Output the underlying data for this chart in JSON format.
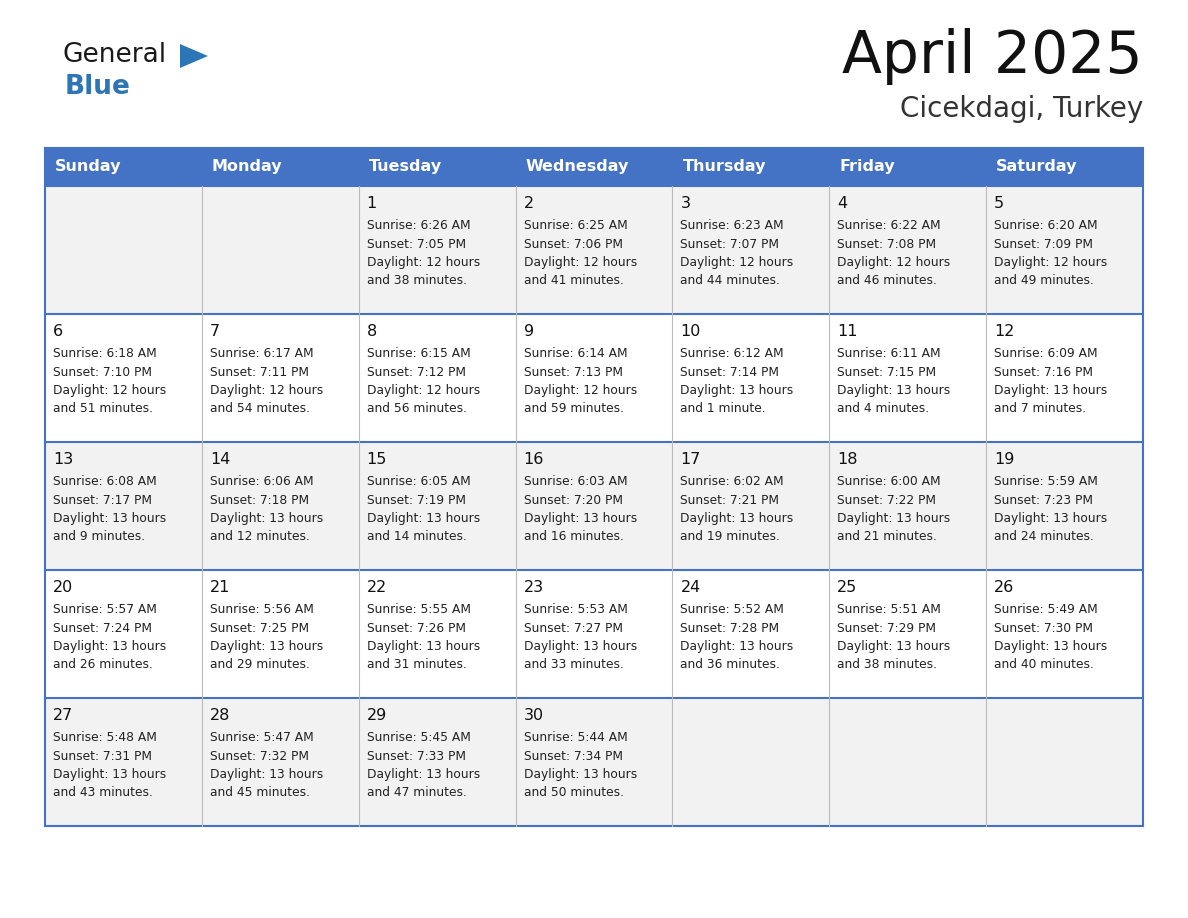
{
  "title": "April 2025",
  "subtitle": "Cicekdagi, Turkey",
  "header_bg": "#4472C4",
  "header_text_color": "#FFFFFF",
  "cell_bg_light": "#F2F2F2",
  "cell_bg_white": "#FFFFFF",
  "border_color": "#4472C4",
  "days_of_week": [
    "Sunday",
    "Monday",
    "Tuesday",
    "Wednesday",
    "Thursday",
    "Friday",
    "Saturday"
  ],
  "weeks": [
    [
      {
        "day": null,
        "sunrise": null,
        "sunset": null,
        "daylight": null
      },
      {
        "day": null,
        "sunrise": null,
        "sunset": null,
        "daylight": null
      },
      {
        "day": 1,
        "sunrise": "6:26 AM",
        "sunset": "7:05 PM",
        "daylight": "12 hours",
        "daylight2": "and 38 minutes."
      },
      {
        "day": 2,
        "sunrise": "6:25 AM",
        "sunset": "7:06 PM",
        "daylight": "12 hours",
        "daylight2": "and 41 minutes."
      },
      {
        "day": 3,
        "sunrise": "6:23 AM",
        "sunset": "7:07 PM",
        "daylight": "12 hours",
        "daylight2": "and 44 minutes."
      },
      {
        "day": 4,
        "sunrise": "6:22 AM",
        "sunset": "7:08 PM",
        "daylight": "12 hours",
        "daylight2": "and 46 minutes."
      },
      {
        "day": 5,
        "sunrise": "6:20 AM",
        "sunset": "7:09 PM",
        "daylight": "12 hours",
        "daylight2": "and 49 minutes."
      }
    ],
    [
      {
        "day": 6,
        "sunrise": "6:18 AM",
        "sunset": "7:10 PM",
        "daylight": "12 hours",
        "daylight2": "and 51 minutes."
      },
      {
        "day": 7,
        "sunrise": "6:17 AM",
        "sunset": "7:11 PM",
        "daylight": "12 hours",
        "daylight2": "and 54 minutes."
      },
      {
        "day": 8,
        "sunrise": "6:15 AM",
        "sunset": "7:12 PM",
        "daylight": "12 hours",
        "daylight2": "and 56 minutes."
      },
      {
        "day": 9,
        "sunrise": "6:14 AM",
        "sunset": "7:13 PM",
        "daylight": "12 hours",
        "daylight2": "and 59 minutes."
      },
      {
        "day": 10,
        "sunrise": "6:12 AM",
        "sunset": "7:14 PM",
        "daylight": "13 hours",
        "daylight2": "and 1 minute."
      },
      {
        "day": 11,
        "sunrise": "6:11 AM",
        "sunset": "7:15 PM",
        "daylight": "13 hours",
        "daylight2": "and 4 minutes."
      },
      {
        "day": 12,
        "sunrise": "6:09 AM",
        "sunset": "7:16 PM",
        "daylight": "13 hours",
        "daylight2": "and 7 minutes."
      }
    ],
    [
      {
        "day": 13,
        "sunrise": "6:08 AM",
        "sunset": "7:17 PM",
        "daylight": "13 hours",
        "daylight2": "and 9 minutes."
      },
      {
        "day": 14,
        "sunrise": "6:06 AM",
        "sunset": "7:18 PM",
        "daylight": "13 hours",
        "daylight2": "and 12 minutes."
      },
      {
        "day": 15,
        "sunrise": "6:05 AM",
        "sunset": "7:19 PM",
        "daylight": "13 hours",
        "daylight2": "and 14 minutes."
      },
      {
        "day": 16,
        "sunrise": "6:03 AM",
        "sunset": "7:20 PM",
        "daylight": "13 hours",
        "daylight2": "and 16 minutes."
      },
      {
        "day": 17,
        "sunrise": "6:02 AM",
        "sunset": "7:21 PM",
        "daylight": "13 hours",
        "daylight2": "and 19 minutes."
      },
      {
        "day": 18,
        "sunrise": "6:00 AM",
        "sunset": "7:22 PM",
        "daylight": "13 hours",
        "daylight2": "and 21 minutes."
      },
      {
        "day": 19,
        "sunrise": "5:59 AM",
        "sunset": "7:23 PM",
        "daylight": "13 hours",
        "daylight2": "and 24 minutes."
      }
    ],
    [
      {
        "day": 20,
        "sunrise": "5:57 AM",
        "sunset": "7:24 PM",
        "daylight": "13 hours",
        "daylight2": "and 26 minutes."
      },
      {
        "day": 21,
        "sunrise": "5:56 AM",
        "sunset": "7:25 PM",
        "daylight": "13 hours",
        "daylight2": "and 29 minutes."
      },
      {
        "day": 22,
        "sunrise": "5:55 AM",
        "sunset": "7:26 PM",
        "daylight": "13 hours",
        "daylight2": "and 31 minutes."
      },
      {
        "day": 23,
        "sunrise": "5:53 AM",
        "sunset": "7:27 PM",
        "daylight": "13 hours",
        "daylight2": "and 33 minutes."
      },
      {
        "day": 24,
        "sunrise": "5:52 AM",
        "sunset": "7:28 PM",
        "daylight": "13 hours",
        "daylight2": "and 36 minutes."
      },
      {
        "day": 25,
        "sunrise": "5:51 AM",
        "sunset": "7:29 PM",
        "daylight": "13 hours",
        "daylight2": "and 38 minutes."
      },
      {
        "day": 26,
        "sunrise": "5:49 AM",
        "sunset": "7:30 PM",
        "daylight": "13 hours",
        "daylight2": "and 40 minutes."
      }
    ],
    [
      {
        "day": 27,
        "sunrise": "5:48 AM",
        "sunset": "7:31 PM",
        "daylight": "13 hours",
        "daylight2": "and 43 minutes."
      },
      {
        "day": 28,
        "sunrise": "5:47 AM",
        "sunset": "7:32 PM",
        "daylight": "13 hours",
        "daylight2": "and 45 minutes."
      },
      {
        "day": 29,
        "sunrise": "5:45 AM",
        "sunset": "7:33 PM",
        "daylight": "13 hours",
        "daylight2": "and 47 minutes."
      },
      {
        "day": 30,
        "sunrise": "5:44 AM",
        "sunset": "7:34 PM",
        "daylight": "13 hours",
        "daylight2": "and 50 minutes."
      },
      {
        "day": null,
        "sunrise": null,
        "sunset": null,
        "daylight": null,
        "daylight2": null
      },
      {
        "day": null,
        "sunrise": null,
        "sunset": null,
        "daylight": null,
        "daylight2": null
      },
      {
        "day": null,
        "sunrise": null,
        "sunset": null,
        "daylight": null,
        "daylight2": null
      }
    ]
  ],
  "logo_color_general": "#1A1A1A",
  "logo_color_blue": "#2E75B6",
  "logo_triangle_color": "#2E75B6"
}
